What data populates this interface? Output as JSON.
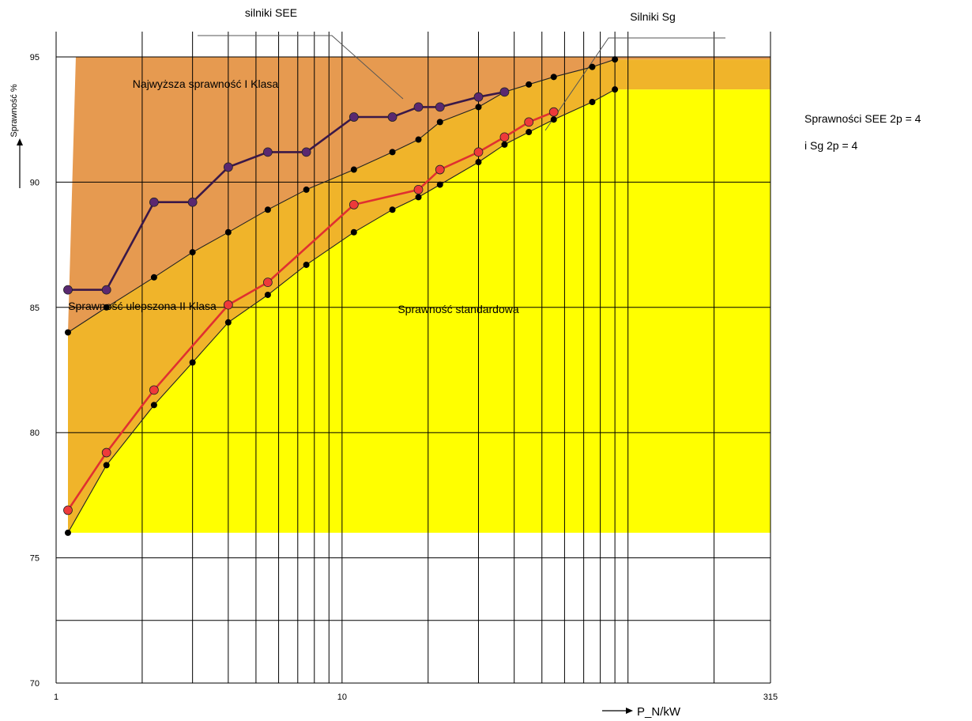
{
  "chart_data": {
    "type": "line",
    "title": "",
    "xlabel": "P_N/kW",
    "ylabel": "Sprawność %",
    "x_scale": "log",
    "xlim": [
      1,
      315
    ],
    "ylim": [
      70,
      95
    ],
    "x_ticks": [
      "1",
      "10",
      "315"
    ],
    "y_ticks": [
      "70",
      "75",
      "80",
      "85",
      "90",
      "95"
    ],
    "grid": true,
    "regions": [
      {
        "label": "Najwyższa sprawność I Klasa",
        "color": "#e69a50"
      },
      {
        "label": "Sprawność ulepszona II Klasa",
        "color": "#f0b42a"
      },
      {
        "label": "Sprawność standardowa",
        "color": "#ffff00"
      }
    ],
    "callouts": [
      "silniki  SEE",
      "Silniki  Sg"
    ],
    "notes": [
      "Sprawności SEE 2p = 4",
      "i Sg 2p = 4"
    ],
    "series": [
      {
        "role": "boundary-upper",
        "color": "#222222",
        "marker_color": "#000000",
        "points": [
          [
            1.1,
            84.0
          ],
          [
            1.5,
            85.0
          ],
          [
            2.2,
            86.2
          ],
          [
            3.0,
            87.2
          ],
          [
            4.0,
            88.0
          ],
          [
            5.5,
            88.9
          ],
          [
            7.5,
            89.7
          ],
          [
            11,
            90.5
          ],
          [
            15,
            91.2
          ],
          [
            18.5,
            91.7
          ],
          [
            22,
            92.4
          ],
          [
            30,
            93.0
          ],
          [
            37,
            93.6
          ],
          [
            45,
            93.9
          ],
          [
            55,
            94.2
          ],
          [
            75,
            94.6
          ],
          [
            90,
            94.9
          ]
        ]
      },
      {
        "role": "boundary-lower",
        "color": "#222222",
        "marker_color": "#000000",
        "points": [
          [
            1.1,
            76.0
          ],
          [
            1.5,
            78.7
          ],
          [
            2.2,
            81.1
          ],
          [
            3.0,
            82.8
          ],
          [
            4.0,
            84.4
          ],
          [
            5.5,
            85.5
          ],
          [
            7.5,
            86.7
          ],
          [
            11,
            88.0
          ],
          [
            15,
            88.9
          ],
          [
            18.5,
            89.4
          ],
          [
            22,
            89.9
          ],
          [
            30,
            90.8
          ],
          [
            37,
            91.5
          ],
          [
            45,
            92.0
          ],
          [
            55,
            92.5
          ],
          [
            75,
            93.2
          ],
          [
            90,
            93.7
          ]
        ]
      },
      {
        "role": "series-SEE",
        "color": "#3a1848",
        "marker_color": "#5a2870",
        "points": [
          [
            1.1,
            85.7
          ],
          [
            1.5,
            85.7
          ],
          [
            2.2,
            89.2
          ],
          [
            3.0,
            89.2
          ],
          [
            4.0,
            90.6
          ],
          [
            5.5,
            91.2
          ],
          [
            7.5,
            91.2
          ],
          [
            11,
            92.6
          ],
          [
            15,
            92.6
          ],
          [
            18.5,
            93.0
          ],
          [
            22,
            93.0
          ],
          [
            30,
            93.4
          ],
          [
            37,
            93.6
          ]
        ]
      },
      {
        "role": "series-Sg",
        "color": "#e03030",
        "marker_color": "#ee3a3a",
        "points": [
          [
            1.1,
            76.9
          ],
          [
            1.5,
            79.2
          ],
          [
            2.2,
            81.7
          ],
          [
            4.0,
            85.1
          ],
          [
            5.5,
            86.0
          ],
          [
            11,
            89.1
          ],
          [
            18.5,
            89.7
          ],
          [
            22,
            90.5
          ],
          [
            30,
            91.2
          ],
          [
            37,
            91.8
          ],
          [
            45,
            92.4
          ],
          [
            55,
            92.8
          ]
        ]
      }
    ]
  }
}
